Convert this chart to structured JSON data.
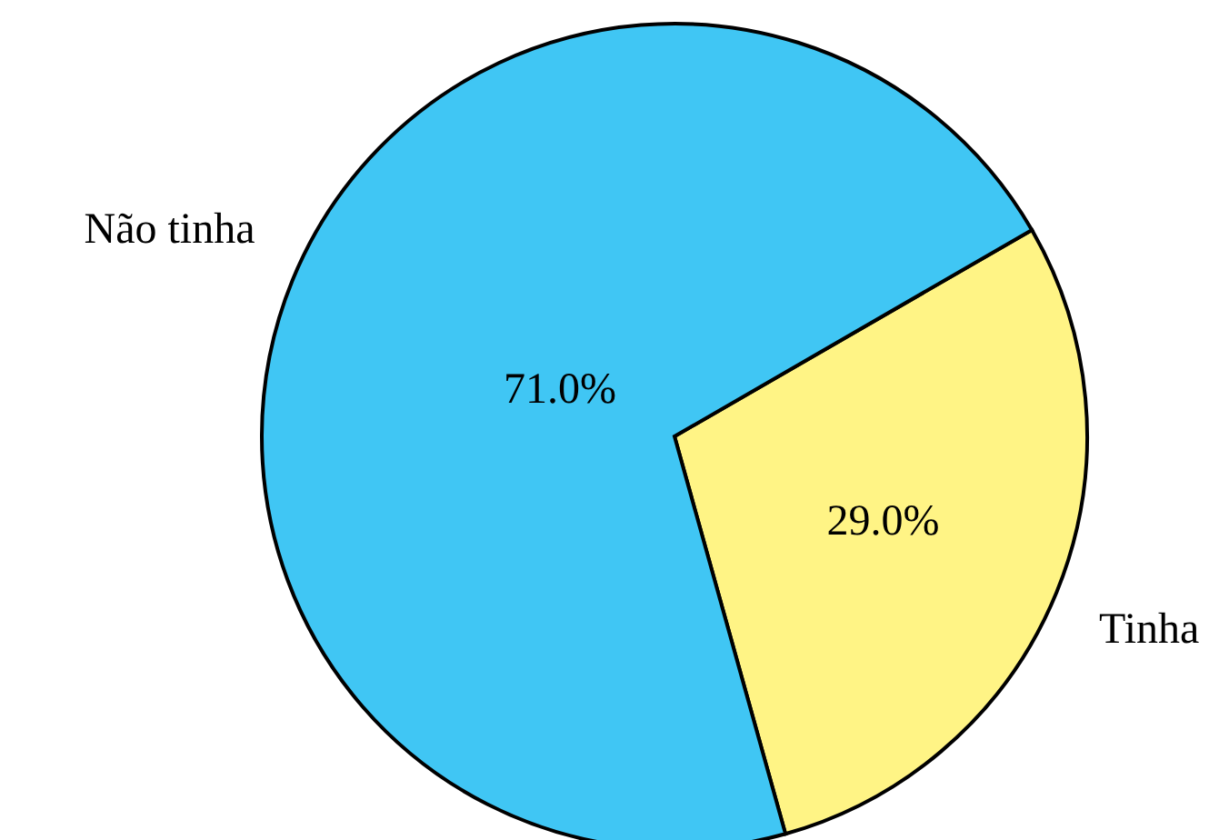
{
  "chart_data": {
    "type": "pie",
    "categories": [
      "Não tinha",
      "Tinha"
    ],
    "values": [
      71.0,
      29.0
    ],
    "colors": [
      "#40c6f4",
      "#fff485"
    ],
    "value_labels": [
      "71.0%",
      "29.0%"
    ]
  }
}
